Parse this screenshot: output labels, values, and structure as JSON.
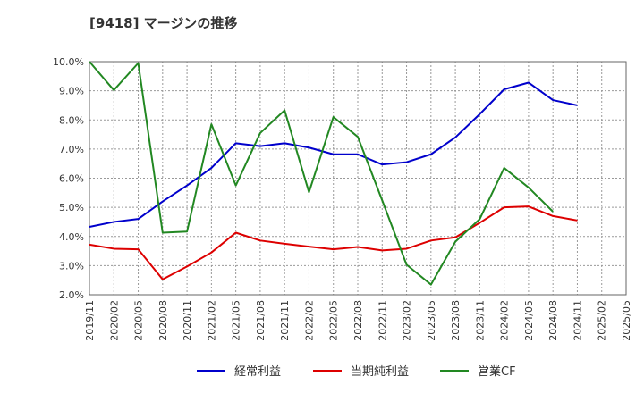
{
  "chart_data": {
    "type": "line",
    "title": "[9418]  マージンの推移",
    "x": [
      "2019/11",
      "2020/02",
      "2020/05",
      "2020/08",
      "2020/11",
      "2021/02",
      "2021/05",
      "2021/08",
      "2021/11",
      "2022/02",
      "2022/05",
      "2022/08",
      "2022/11",
      "2023/02",
      "2023/05",
      "2023/08",
      "2023/11",
      "2024/02",
      "2024/05",
      "2024/08",
      "2024/11",
      "2025/02",
      "2025/05"
    ],
    "yticks": [
      "2.0%",
      "3.0%",
      "4.0%",
      "5.0%",
      "6.0%",
      "7.0%",
      "8.0%",
      "9.0%",
      "10.0%"
    ],
    "ylim": [
      2.0,
      10.0
    ],
    "grid": true,
    "legend_position": "bottom",
    "series": [
      {
        "name": "経常利益",
        "color": "#0000cc",
        "values": [
          4.33,
          4.5,
          4.6,
          5.2,
          5.75,
          6.35,
          7.2,
          7.1,
          7.2,
          7.05,
          6.82,
          6.82,
          6.47,
          6.55,
          6.82,
          7.4,
          8.2,
          9.05,
          9.28,
          8.68,
          8.5,
          null,
          null
        ]
      },
      {
        "name": "当期純利益",
        "color": "#dd0000",
        "values": [
          3.72,
          3.58,
          3.56,
          2.53,
          2.97,
          3.45,
          4.13,
          3.86,
          3.75,
          3.65,
          3.56,
          3.64,
          3.52,
          3.58,
          3.86,
          3.97,
          4.47,
          5.0,
          5.03,
          4.7,
          4.55,
          null,
          null
        ]
      },
      {
        "name": "営業CF",
        "color": "#228822",
        "values": [
          10.0,
          9.02,
          9.95,
          4.13,
          4.17,
          7.85,
          5.75,
          7.55,
          8.33,
          5.52,
          8.1,
          7.42,
          5.24,
          3.03,
          2.35,
          3.82,
          4.6,
          6.35,
          5.68,
          4.85,
          null,
          null,
          null
        ]
      }
    ]
  }
}
